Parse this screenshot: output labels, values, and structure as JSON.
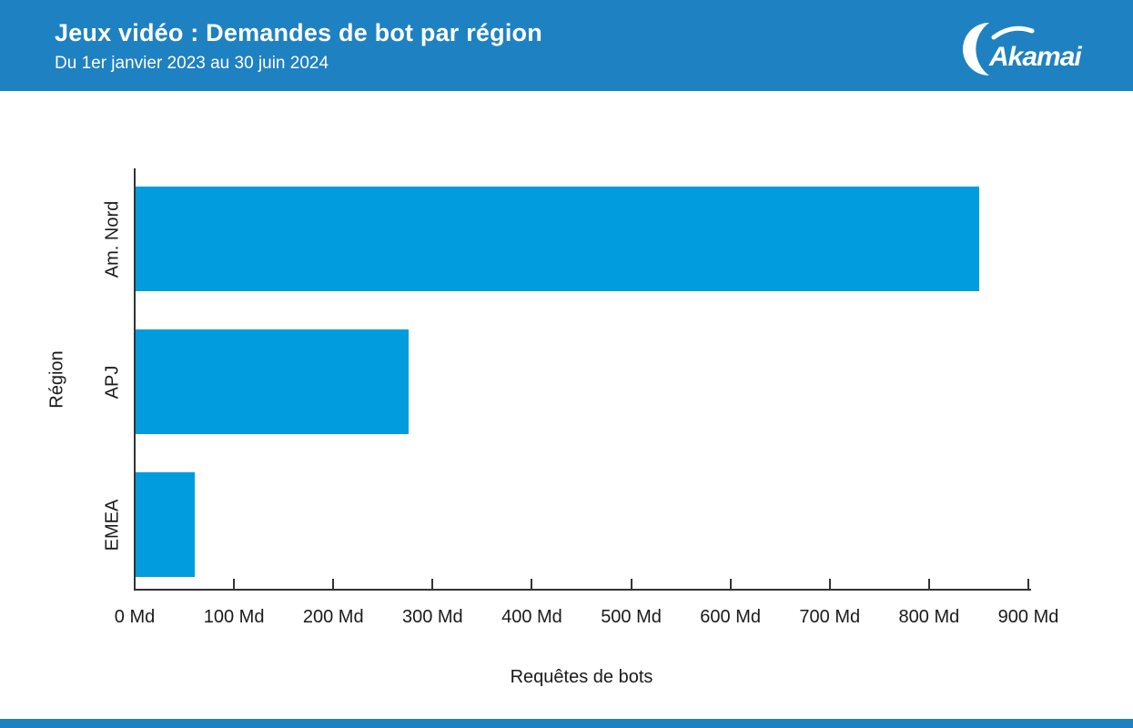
{
  "header": {
    "title": "Jeux vidéo : Demandes de bot par région",
    "subtitle": "Du 1er janvier 2023 au 30 juin 2024",
    "logo_text": "Akamai",
    "bg_color": "#1E81C2"
  },
  "chart_data": {
    "type": "bar",
    "orientation": "horizontal",
    "title": "Jeux vidéo : Demandes de bot par région",
    "subtitle": "Du 1er janvier 2023 au 30 juin 2024",
    "categories": [
      "Am. Nord",
      "APJ",
      "EMEA"
    ],
    "values": [
      850,
      275,
      60
    ],
    "unit": "Md",
    "xlabel": "Requêtes de bots",
    "ylabel": "Région",
    "xlim": [
      0,
      900
    ],
    "xticks": [
      0,
      100,
      200,
      300,
      400,
      500,
      600,
      700,
      800,
      900
    ],
    "xtick_labels": [
      "0 Md",
      "100 Md",
      "200 Md",
      "300 Md",
      "400 Md",
      "500 Md",
      "600 Md",
      "700 Md",
      "800 Md",
      "900 Md"
    ],
    "bar_color": "#009CDE",
    "axis_color": "#333333",
    "grid": false,
    "legend_position": "none"
  }
}
